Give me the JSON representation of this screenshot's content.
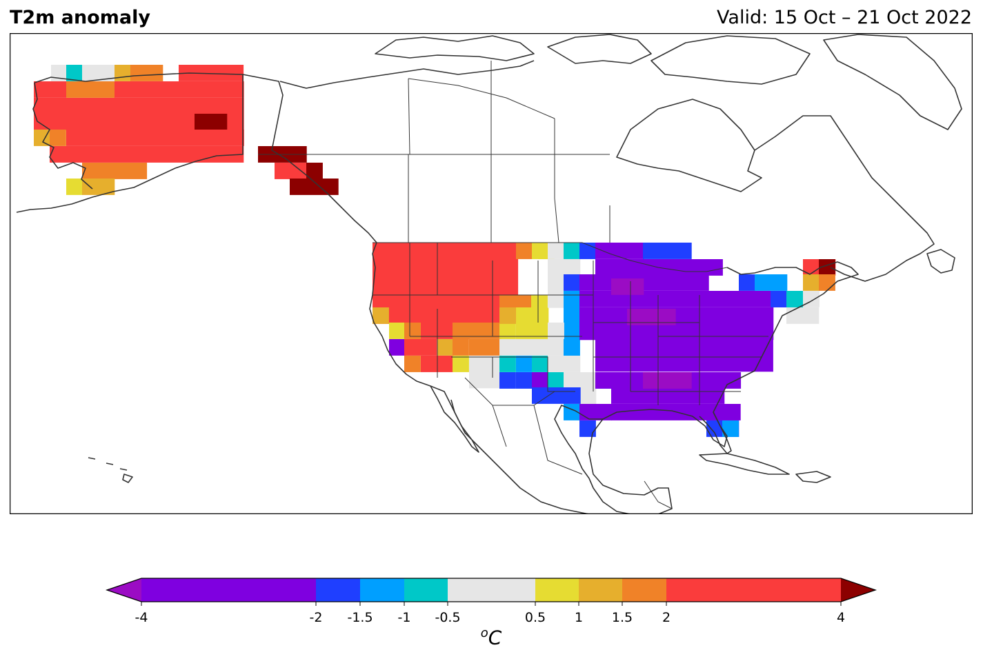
{
  "header": {
    "title": "T2m anomaly",
    "valid": "Valid: 15 Oct – 21 Oct 2022"
  },
  "colorbar": {
    "unit_base": "C",
    "unit_sup": "o",
    "ticks": [
      "-4",
      "-2",
      "-1.5",
      "-1",
      "-0.5",
      "0.5",
      "1",
      "1.5",
      "2",
      "4"
    ],
    "colors": {
      "below_min": "#9b0cc4",
      "lt_-2": "#7f00e0",
      "-2_-1.5": "#1f3fff",
      "-1.5_-1": "#009fff",
      "-1_-0.5": "#00c8c8",
      "-0.5_0.5": "#e6e6e6",
      "0.5_1": "#e6dc32",
      "1_1.5": "#e6af2d",
      "1.5_2": "#f08228",
      "2_4": "#fa3c3c",
      "above_max": "#8c0000"
    }
  },
  "map": {
    "region": "North America",
    "coastline_color": "#333333"
  }
}
